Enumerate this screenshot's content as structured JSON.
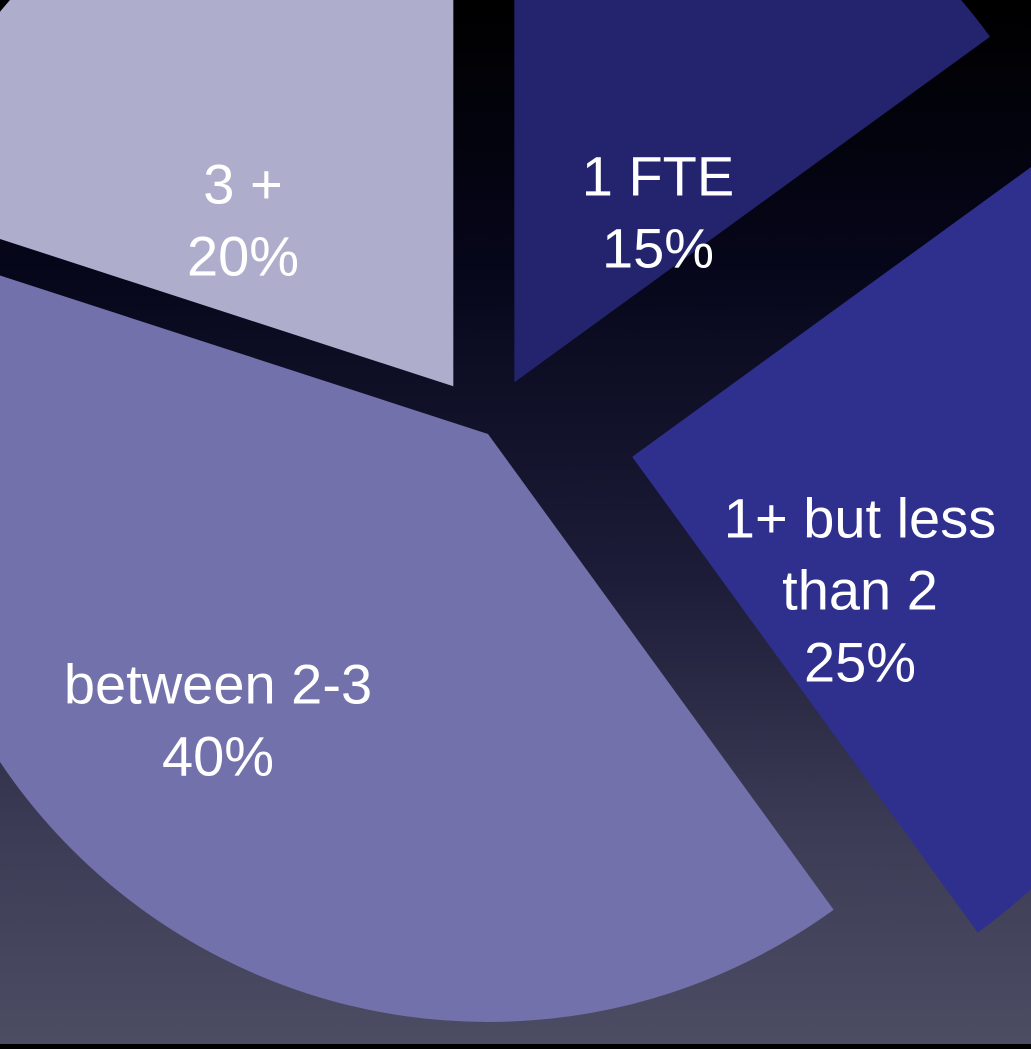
{
  "chart_data": {
    "type": "pie",
    "slices": [
      {
        "label_lines": [
          "1 FTE"
        ],
        "value": 15,
        "value_label": "15%",
        "color": "#24246e"
      },
      {
        "label_lines": [
          "1+ but less",
          "than 2"
        ],
        "value": 25,
        "value_label": "25%",
        "color": "#2f2f8e"
      },
      {
        "label_lines": [
          "between 2-3"
        ],
        "value": 40,
        "value_label": "40%",
        "color": "#7271ab"
      },
      {
        "label_lines": [
          "3 +"
        ],
        "value": 20,
        "value_label": "20%",
        "color": "#aeadcc"
      }
    ],
    "exploded": true,
    "start": "12 o'clock, clockwise"
  }
}
